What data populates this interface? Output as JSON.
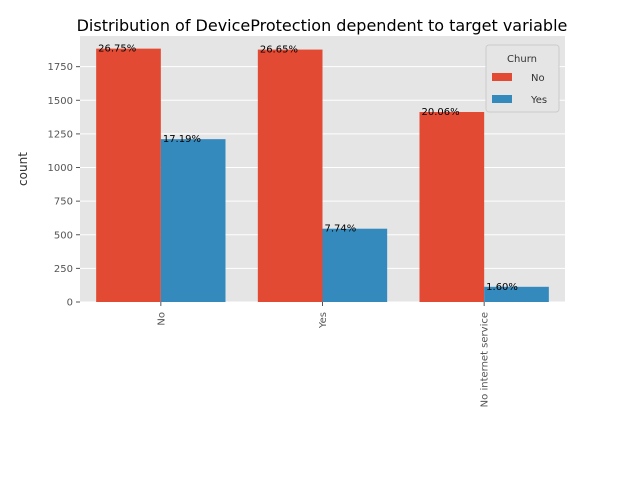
{
  "chart_data": {
    "type": "bar",
    "title": "Distribution of DeviceProtection dependent to target variable",
    "xlabel": "",
    "ylabel": "count",
    "categories": [
      "No",
      "Yes",
      "No internet service"
    ],
    "series": [
      {
        "name": "No",
        "values": [
          1884,
          1877,
          1413
        ],
        "labels": [
          "26.75%",
          "26.65%",
          "20.06%"
        ],
        "color": "#E24A33"
      },
      {
        "name": "Yes",
        "values": [
          1211,
          545,
          113
        ],
        "labels": [
          "17.19%",
          "7.74%",
          "1.60%"
        ],
        "color": "#348ABD"
      }
    ],
    "yticks": [
      0,
      250,
      500,
      750,
      1000,
      1250,
      1500,
      1750
    ],
    "ytick_labels": [
      "0",
      "250",
      "500",
      "750",
      "1000",
      "1250",
      "1500",
      "1750"
    ],
    "ylim": [
      0,
      1978
    ],
    "grid": true,
    "legend": {
      "title": "Churn",
      "placement": "top-right"
    },
    "background": "#E5E5E5",
    "grid_color": "#FFFFFF"
  }
}
